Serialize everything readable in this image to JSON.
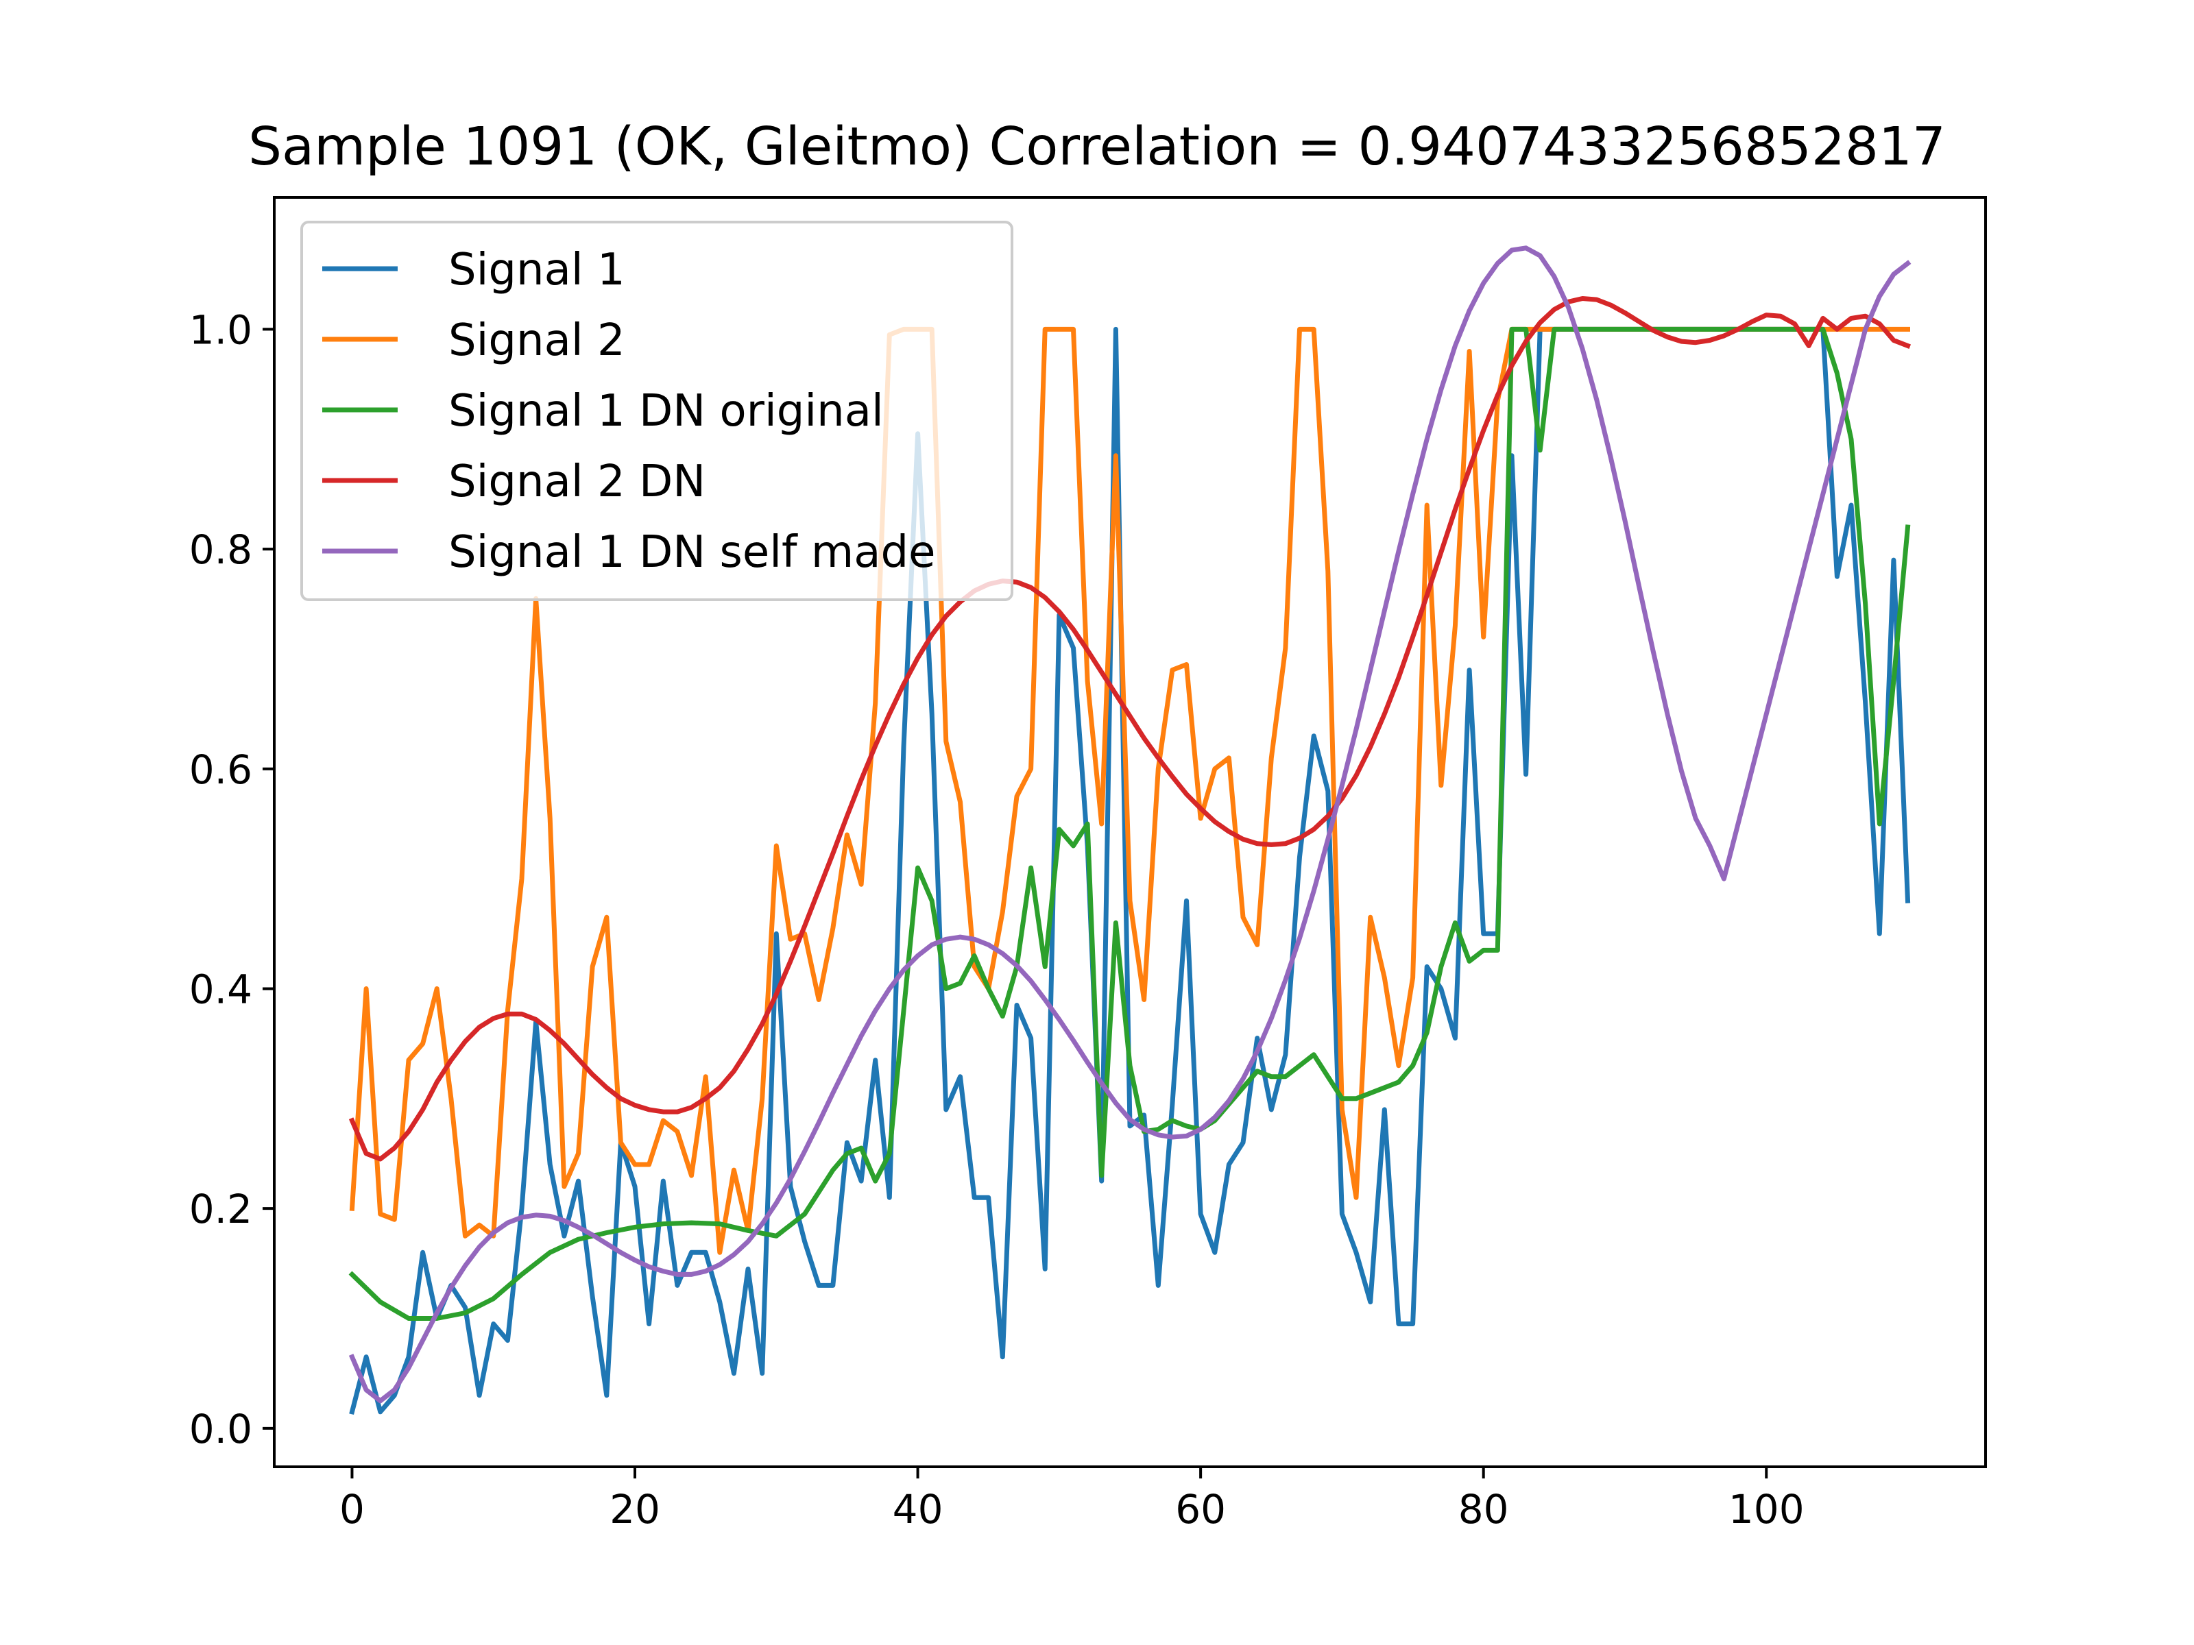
{
  "chart_data": {
    "type": "line",
    "title": "Sample 1091 (OK, Gleitmo)  Correlation = 0.9407433256852817",
    "xlabel": "",
    "ylabel": "",
    "xlim": [
      -5.5,
      115.5
    ],
    "ylim": [
      -0.035,
      1.12
    ],
    "xticks": [
      0,
      20,
      40,
      60,
      80,
      100
    ],
    "yticks": [
      0.0,
      0.2,
      0.4,
      0.6,
      0.8,
      1.0
    ],
    "xtick_labels": [
      "0",
      "20",
      "40",
      "60",
      "80",
      "100"
    ],
    "ytick_labels": [
      "0.0",
      "0.2",
      "0.4",
      "0.6",
      "0.8",
      "1.0"
    ],
    "grid": false,
    "legend_placement": "upper-left",
    "series": [
      {
        "name": "Signal 1",
        "color": "#1f77b4",
        "x": [
          0,
          1,
          2,
          3,
          4,
          5,
          6,
          7,
          8,
          9,
          10,
          11,
          12,
          13,
          14,
          15,
          16,
          17,
          18,
          19,
          20,
          21,
          22,
          23,
          24,
          25,
          26,
          27,
          28,
          29,
          30,
          31,
          32,
          33,
          34,
          35,
          36,
          37,
          38,
          39,
          40,
          41,
          42,
          43,
          44,
          45,
          46,
          47,
          48,
          49,
          50,
          51,
          52,
          53,
          54,
          55,
          56,
          57,
          58,
          59,
          60,
          61,
          62,
          63,
          64,
          65,
          66,
          67,
          68,
          69,
          70,
          71,
          72,
          73,
          74,
          75,
          76,
          77,
          78,
          79,
          80,
          81,
          82,
          83,
          84,
          85,
          86,
          87,
          88,
          89,
          90,
          91,
          92,
          93,
          94,
          95,
          96,
          97,
          98,
          99,
          100,
          101,
          102,
          103,
          104,
          105,
          106,
          107,
          108,
          109,
          110
        ],
        "y": [
          0.015,
          0.065,
          0.015,
          0.03,
          0.065,
          0.16,
          0.1,
          0.13,
          0.11,
          0.03,
          0.095,
          0.08,
          0.2,
          0.37,
          0.24,
          0.175,
          0.225,
          0.12,
          0.03,
          0.26,
          0.22,
          0.095,
          0.225,
          0.13,
          0.16,
          0.16,
          0.115,
          0.05,
          0.145,
          0.05,
          0.45,
          0.22,
          0.17,
          0.13,
          0.13,
          0.26,
          0.225,
          0.335,
          0.21,
          0.62,
          0.905,
          0.65,
          0.29,
          0.32,
          0.21,
          0.21,
          0.065,
          0.385,
          0.355,
          0.145,
          0.74,
          0.71,
          0.53,
          0.225,
          1.0,
          0.275,
          0.285,
          0.13,
          0.295,
          0.48,
          0.195,
          0.16,
          0.24,
          0.26,
          0.355,
          0.29,
          0.34,
          0.52,
          0.63,
          0.58,
          0.195,
          0.16,
          0.115,
          0.29,
          0.095,
          0.095,
          0.42,
          0.4,
          0.355,
          0.69,
          0.45,
          0.45,
          0.885,
          0.595,
          1.0,
          1.0,
          1.0,
          1.0,
          1.0,
          1.0,
          1.0,
          1.0,
          1.0,
          1.0,
          1.0,
          1.0,
          1.0,
          1.0,
          1.0,
          1.0,
          1.0,
          1.0,
          1.0,
          1.0,
          1.0,
          0.775,
          0.84,
          0.66,
          0.45,
          0.79,
          0.48
        ]
      },
      {
        "name": "Signal 2",
        "color": "#ff7f0e",
        "x": [
          0,
          1,
          2,
          3,
          4,
          5,
          6,
          7,
          8,
          9,
          10,
          11,
          12,
          13,
          14,
          15,
          16,
          17,
          18,
          19,
          20,
          21,
          22,
          23,
          24,
          25,
          26,
          27,
          28,
          29,
          30,
          31,
          32,
          33,
          34,
          35,
          36,
          37,
          38,
          39,
          40,
          41,
          42,
          43,
          44,
          45,
          46,
          47,
          48,
          49,
          50,
          51,
          52,
          53,
          54,
          55,
          56,
          57,
          58,
          59,
          60,
          61,
          62,
          63,
          64,
          65,
          66,
          67,
          68,
          69,
          70,
          71,
          72,
          73,
          74,
          75,
          76,
          77,
          78,
          79,
          80,
          81,
          82,
          83,
          84,
          85,
          86,
          87,
          88,
          89,
          90,
          91,
          92,
          93,
          94,
          95,
          96,
          97,
          98,
          99,
          100,
          101,
          102,
          103,
          104,
          105,
          106,
          107,
          108,
          109,
          110
        ],
        "y": [
          0.2,
          0.4,
          0.195,
          0.19,
          0.335,
          0.35,
          0.4,
          0.3,
          0.175,
          0.185,
          0.175,
          0.38,
          0.5,
          0.755,
          0.555,
          0.22,
          0.25,
          0.42,
          0.465,
          0.26,
          0.24,
          0.24,
          0.28,
          0.27,
          0.23,
          0.32,
          0.16,
          0.235,
          0.18,
          0.3,
          0.53,
          0.445,
          0.45,
          0.39,
          0.455,
          0.54,
          0.495,
          0.66,
          0.995,
          1.0,
          1.0,
          1.0,
          0.625,
          0.57,
          0.42,
          0.4,
          0.47,
          0.575,
          0.6,
          1.0,
          1.0,
          1.0,
          0.68,
          0.55,
          0.885,
          0.48,
          0.39,
          0.6,
          0.69,
          0.695,
          0.555,
          0.6,
          0.61,
          0.465,
          0.44,
          0.61,
          0.71,
          1.0,
          1.0,
          0.78,
          0.29,
          0.21,
          0.465,
          0.41,
          0.33,
          0.41,
          0.84,
          0.585,
          0.73,
          0.98,
          0.72,
          0.935,
          1.0,
          1.0,
          1.0,
          1.0,
          1.0,
          1.0,
          1.0,
          1.0,
          1.0,
          1.0,
          1.0,
          1.0,
          1.0,
          1.0,
          1.0,
          1.0,
          1.0,
          1.0,
          1.0,
          1.0,
          1.0,
          1.0,
          1.0,
          1.0,
          1.0,
          1.0,
          1.0,
          1.0,
          1.0
        ]
      },
      {
        "name": "Signal 1 DN original",
        "color": "#2ca02c",
        "x": [
          0,
          2,
          4,
          6,
          8,
          10,
          12,
          14,
          16,
          18,
          20,
          22,
          24,
          26,
          28,
          30,
          32,
          34,
          35,
          36,
          37,
          38,
          39,
          40,
          41,
          42,
          43,
          44,
          45,
          46,
          47,
          48,
          49,
          50,
          51,
          52,
          53,
          54,
          55,
          56,
          57,
          58,
          59,
          60,
          61,
          62,
          63,
          64,
          65,
          66,
          67,
          68,
          69,
          70,
          71,
          72,
          73,
          74,
          75,
          76,
          77,
          78,
          79,
          80,
          81,
          82,
          83,
          84,
          85,
          86,
          88,
          90,
          92,
          94,
          96,
          98,
          100,
          102,
          104,
          105,
          106,
          107,
          108,
          109,
          110
        ],
        "y": [
          0.14,
          0.115,
          0.1,
          0.1,
          0.105,
          0.118,
          0.14,
          0.16,
          0.172,
          0.178,
          0.183,
          0.186,
          0.187,
          0.186,
          0.18,
          0.175,
          0.195,
          0.235,
          0.25,
          0.255,
          0.225,
          0.25,
          0.38,
          0.51,
          0.48,
          0.4,
          0.405,
          0.43,
          0.4,
          0.375,
          0.42,
          0.51,
          0.42,
          0.545,
          0.53,
          0.55,
          0.23,
          0.46,
          0.33,
          0.27,
          0.272,
          0.28,
          0.275,
          0.272,
          0.28,
          0.295,
          0.31,
          0.325,
          0.32,
          0.32,
          0.33,
          0.34,
          0.32,
          0.3,
          0.3,
          0.305,
          0.31,
          0.315,
          0.33,
          0.36,
          0.42,
          0.46,
          0.425,
          0.435,
          0.435,
          1.0,
          1.0,
          0.89,
          1.0,
          1.0,
          1.0,
          1.0,
          1.0,
          1.0,
          1.0,
          1.0,
          1.0,
          1.0,
          1.0,
          0.96,
          0.9,
          0.75,
          0.55,
          0.68,
          0.82
        ]
      },
      {
        "name": "Signal 2 DN",
        "color": "#d62728",
        "x": [
          0,
          1,
          2,
          3,
          4,
          5,
          6,
          7,
          8,
          9,
          10,
          11,
          12,
          13,
          14,
          15,
          16,
          17,
          18,
          19,
          20,
          21,
          22,
          23,
          24,
          25,
          26,
          27,
          28,
          29,
          30,
          31,
          32,
          33,
          34,
          35,
          36,
          37,
          38,
          39,
          40,
          41,
          42,
          43,
          44,
          45,
          46,
          47,
          48,
          49,
          50,
          51,
          52,
          53,
          54,
          55,
          56,
          57,
          58,
          59,
          60,
          61,
          62,
          63,
          64,
          65,
          66,
          67,
          68,
          69,
          70,
          71,
          72,
          73,
          74,
          75,
          76,
          77,
          78,
          79,
          80,
          81,
          82,
          83,
          84,
          85,
          86,
          87,
          88,
          89,
          90,
          91,
          92,
          93,
          94,
          95,
          96,
          97,
          98,
          99,
          100,
          101,
          102,
          103,
          104,
          105,
          106,
          107,
          108,
          109,
          110
        ],
        "y": [
          0.28,
          0.25,
          0.245,
          0.255,
          0.27,
          0.29,
          0.315,
          0.335,
          0.352,
          0.365,
          0.373,
          0.377,
          0.377,
          0.372,
          0.362,
          0.35,
          0.336,
          0.322,
          0.31,
          0.3,
          0.294,
          0.29,
          0.288,
          0.288,
          0.292,
          0.3,
          0.31,
          0.325,
          0.345,
          0.368,
          0.395,
          0.425,
          0.457,
          0.49,
          0.523,
          0.557,
          0.59,
          0.621,
          0.65,
          0.677,
          0.701,
          0.722,
          0.739,
          0.752,
          0.762,
          0.768,
          0.771,
          0.77,
          0.765,
          0.756,
          0.743,
          0.727,
          0.708,
          0.688,
          0.668,
          0.648,
          0.628,
          0.61,
          0.593,
          0.577,
          0.564,
          0.552,
          0.543,
          0.536,
          0.532,
          0.531,
          0.532,
          0.537,
          0.545,
          0.557,
          0.573,
          0.594,
          0.62,
          0.65,
          0.683,
          0.72,
          0.758,
          0.797,
          0.836,
          0.873,
          0.908,
          0.94,
          0.967,
          0.989,
          1.006,
          1.018,
          1.025,
          1.028,
          1.027,
          1.022,
          1.015,
          1.007,
          0.999,
          0.993,
          0.989,
          0.988,
          0.99,
          0.994,
          1.0,
          1.007,
          1.013,
          1.012,
          1.005,
          0.985,
          1.01,
          1.0,
          1.01,
          1.012,
          1.005,
          0.99,
          0.985
        ]
      },
      {
        "name": "Signal 1 DN self made",
        "color": "#9467bd",
        "x": [
          0,
          1,
          2,
          3,
          4,
          5,
          6,
          7,
          8,
          9,
          10,
          11,
          12,
          13,
          14,
          15,
          16,
          17,
          18,
          19,
          20,
          21,
          22,
          23,
          24,
          25,
          26,
          27,
          28,
          29,
          30,
          31,
          32,
          33,
          34,
          35,
          36,
          37,
          38,
          39,
          40,
          41,
          42,
          43,
          44,
          45,
          46,
          47,
          48,
          49,
          50,
          51,
          52,
          53,
          54,
          55,
          56,
          57,
          58,
          59,
          60,
          61,
          62,
          63,
          64,
          65,
          66,
          67,
          68,
          69,
          70,
          71,
          72,
          73,
          74,
          75,
          76,
          77,
          78,
          79,
          80,
          81,
          82,
          83,
          84,
          85,
          86,
          87,
          88,
          89,
          90,
          91,
          92,
          93,
          94,
          95,
          96,
          97,
          98,
          99,
          100,
          101,
          102,
          103,
          104,
          105,
          106,
          107,
          108,
          109,
          110
        ],
        "y": [
          0.065,
          0.035,
          0.025,
          0.035,
          0.055,
          0.08,
          0.105,
          0.128,
          0.148,
          0.165,
          0.178,
          0.187,
          0.192,
          0.194,
          0.193,
          0.189,
          0.183,
          0.176,
          0.168,
          0.16,
          0.153,
          0.147,
          0.143,
          0.14,
          0.14,
          0.143,
          0.149,
          0.158,
          0.17,
          0.186,
          0.205,
          0.227,
          0.252,
          0.278,
          0.305,
          0.331,
          0.357,
          0.38,
          0.4,
          0.417,
          0.43,
          0.44,
          0.445,
          0.447,
          0.445,
          0.44,
          0.432,
          0.421,
          0.407,
          0.39,
          0.372,
          0.353,
          0.333,
          0.314,
          0.296,
          0.281,
          0.272,
          0.267,
          0.265,
          0.266,
          0.272,
          0.283,
          0.298,
          0.318,
          0.343,
          0.373,
          0.408,
          0.446,
          0.489,
          0.536,
          0.585,
          0.636,
          0.69,
          0.744,
          0.798,
          0.85,
          0.9,
          0.945,
          0.985,
          1.017,
          1.042,
          1.06,
          1.072,
          1.074,
          1.067,
          1.048,
          1.02,
          0.982,
          0.936,
          0.883,
          0.826,
          0.766,
          0.707,
          0.65,
          0.598,
          0.555,
          0.53,
          0.5,
          0.55,
          0.6,
          0.65,
          0.7,
          0.75,
          0.8,
          0.85,
          0.9,
          0.95,
          1.0,
          1.03,
          1.05,
          1.06
        ]
      }
    ]
  }
}
